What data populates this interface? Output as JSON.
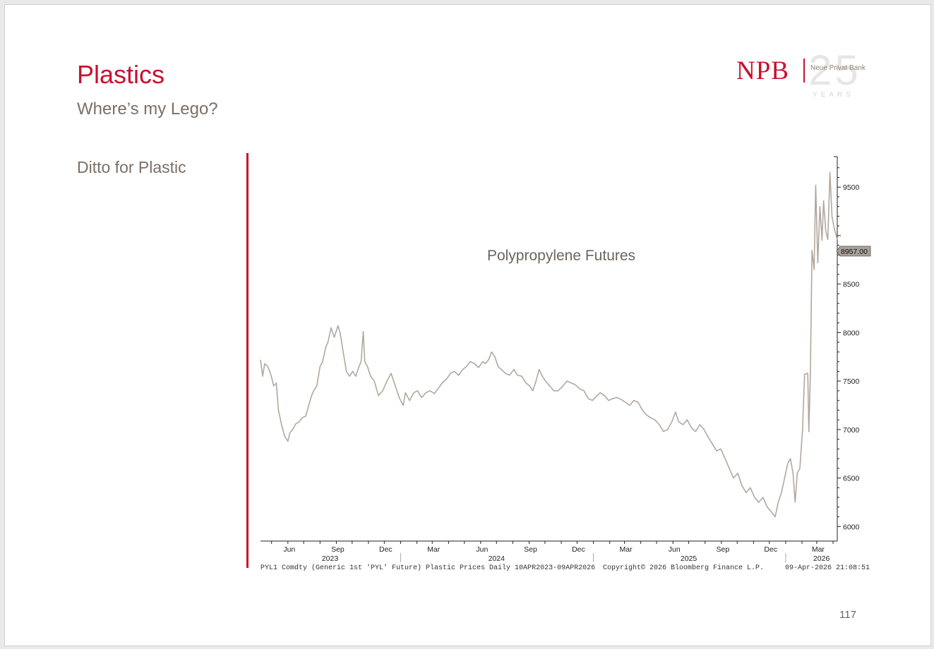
{
  "slide": {
    "title": "Plastics",
    "subtitle": "Where’s my Lego?",
    "side_text": "Ditto for Plastic",
    "page_number": "117"
  },
  "logo": {
    "brand": "NPB",
    "anniversary": "25",
    "bank_name": "Neue Privat Bank",
    "years": "YEARS"
  },
  "colors": {
    "accent": "#c8102e",
    "line": "#b1a89f",
    "text_gray": "#7a6f66"
  },
  "chart_data": {
    "type": "line",
    "title": "Polypropylene Futures",
    "last_value_label": "8957.00",
    "ylim": [
      5850,
      9800
    ],
    "yticks": [
      6000,
      6500,
      7000,
      7500,
      8000,
      8500,
      9500
    ],
    "x_start": "2023-04-10",
    "x_end": "2026-04-09",
    "month_ticks": [
      {
        "date": "2023-06-01",
        "label": "Jun"
      },
      {
        "date": "2023-09-01",
        "label": "Sep"
      },
      {
        "date": "2023-12-01",
        "label": "Dec"
      },
      {
        "date": "2024-03-01",
        "label": "Mar"
      },
      {
        "date": "2024-06-01",
        "label": "Jun"
      },
      {
        "date": "2024-09-01",
        "label": "Sep"
      },
      {
        "date": "2024-12-01",
        "label": "Dec"
      },
      {
        "date": "2025-03-01",
        "label": "Mar"
      },
      {
        "date": "2025-06-01",
        "label": "Jun"
      },
      {
        "date": "2025-09-01",
        "label": "Sep"
      },
      {
        "date": "2025-12-01",
        "label": "Dec"
      },
      {
        "date": "2026-03-01",
        "label": "Mar"
      }
    ],
    "year_labels": [
      {
        "date": "2023-08-20",
        "label": "2023"
      },
      {
        "date": "2024-07-01",
        "label": "2024"
      },
      {
        "date": "2025-07-01",
        "label": "2025"
      },
      {
        "date": "2026-03-10",
        "label": "2026"
      }
    ],
    "year_boundaries": [
      "2024-01-01",
      "2025-01-01",
      "2026-01-01"
    ],
    "series": [
      {
        "values": [
          [
            "2023-04-10",
            7720
          ],
          [
            "2023-04-14",
            7550
          ],
          [
            "2023-04-18",
            7680
          ],
          [
            "2023-04-24",
            7650
          ],
          [
            "2023-04-30",
            7560
          ],
          [
            "2023-05-05",
            7450
          ],
          [
            "2023-05-10",
            7480
          ],
          [
            "2023-05-14",
            7200
          ],
          [
            "2023-05-20",
            7050
          ],
          [
            "2023-05-26",
            6930
          ],
          [
            "2023-06-01",
            6880
          ],
          [
            "2023-06-05",
            6970
          ],
          [
            "2023-06-10",
            7000
          ],
          [
            "2023-06-16",
            7060
          ],
          [
            "2023-06-22",
            7080
          ],
          [
            "2023-06-28",
            7120
          ],
          [
            "2023-07-05",
            7140
          ],
          [
            "2023-07-10",
            7240
          ],
          [
            "2023-07-16",
            7350
          ],
          [
            "2023-07-20",
            7400
          ],
          [
            "2023-07-26",
            7450
          ],
          [
            "2023-08-01",
            7650
          ],
          [
            "2023-08-06",
            7700
          ],
          [
            "2023-08-12",
            7850
          ],
          [
            "2023-08-16",
            7900
          ],
          [
            "2023-08-22",
            8050
          ],
          [
            "2023-08-28",
            7950
          ],
          [
            "2023-09-04",
            8070
          ],
          [
            "2023-09-08",
            8000
          ],
          [
            "2023-09-14",
            7800
          ],
          [
            "2023-09-20",
            7600
          ],
          [
            "2023-09-26",
            7550
          ],
          [
            "2023-10-02",
            7600
          ],
          [
            "2023-10-08",
            7550
          ],
          [
            "2023-10-14",
            7650
          ],
          [
            "2023-10-18",
            7700
          ],
          [
            "2023-10-22",
            8010
          ],
          [
            "2023-10-25",
            7700
          ],
          [
            "2023-10-30",
            7650
          ],
          [
            "2023-11-05",
            7550
          ],
          [
            "2023-11-12",
            7500
          ],
          [
            "2023-11-20",
            7350
          ],
          [
            "2023-11-28",
            7400
          ],
          [
            "2023-12-06",
            7500
          ],
          [
            "2023-12-14",
            7580
          ],
          [
            "2023-12-22",
            7450
          ],
          [
            "2023-12-30",
            7320
          ],
          [
            "2024-01-06",
            7250
          ],
          [
            "2024-01-10",
            7380
          ],
          [
            "2024-01-18",
            7300
          ],
          [
            "2024-01-26",
            7380
          ],
          [
            "2024-02-02",
            7400
          ],
          [
            "2024-02-10",
            7330
          ],
          [
            "2024-02-18",
            7380
          ],
          [
            "2024-02-26",
            7400
          ],
          [
            "2024-03-05",
            7370
          ],
          [
            "2024-03-12",
            7420
          ],
          [
            "2024-03-20",
            7480
          ],
          [
            "2024-03-28",
            7520
          ],
          [
            "2024-04-05",
            7580
          ],
          [
            "2024-04-12",
            7600
          ],
          [
            "2024-04-20",
            7560
          ],
          [
            "2024-04-28",
            7620
          ],
          [
            "2024-05-05",
            7650
          ],
          [
            "2024-05-12",
            7700
          ],
          [
            "2024-05-20",
            7680
          ],
          [
            "2024-05-28",
            7640
          ],
          [
            "2024-06-05",
            7700
          ],
          [
            "2024-06-10",
            7680
          ],
          [
            "2024-06-16",
            7720
          ],
          [
            "2024-06-22",
            7800
          ],
          [
            "2024-06-28",
            7750
          ],
          [
            "2024-07-04",
            7650
          ],
          [
            "2024-07-10",
            7620
          ],
          [
            "2024-07-18",
            7580
          ],
          [
            "2024-07-26",
            7560
          ],
          [
            "2024-08-03",
            7620
          ],
          [
            "2024-08-10",
            7560
          ],
          [
            "2024-08-18",
            7550
          ],
          [
            "2024-08-26",
            7480
          ],
          [
            "2024-09-02",
            7450
          ],
          [
            "2024-09-08",
            7400
          ],
          [
            "2024-09-14",
            7500
          ],
          [
            "2024-09-20",
            7620
          ],
          [
            "2024-09-26",
            7550
          ],
          [
            "2024-10-02",
            7500
          ],
          [
            "2024-10-10",
            7450
          ],
          [
            "2024-10-18",
            7400
          ],
          [
            "2024-10-26",
            7400
          ],
          [
            "2024-11-04",
            7450
          ],
          [
            "2024-11-12",
            7500
          ],
          [
            "2024-11-20",
            7480
          ],
          [
            "2024-11-28",
            7460
          ],
          [
            "2024-12-06",
            7420
          ],
          [
            "2024-12-14",
            7400
          ],
          [
            "2024-12-22",
            7320
          ],
          [
            "2024-12-30",
            7300
          ],
          [
            "2025-01-06",
            7340
          ],
          [
            "2025-01-14",
            7380
          ],
          [
            "2025-01-22",
            7350
          ],
          [
            "2025-01-30",
            7300
          ],
          [
            "2025-02-07",
            7320
          ],
          [
            "2025-02-15",
            7330
          ],
          [
            "2025-02-23",
            7310
          ],
          [
            "2025-03-03",
            7280
          ],
          [
            "2025-03-11",
            7250
          ],
          [
            "2025-03-19",
            7300
          ],
          [
            "2025-03-27",
            7280
          ],
          [
            "2025-04-04",
            7200
          ],
          [
            "2025-04-12",
            7150
          ],
          [
            "2025-04-20",
            7120
          ],
          [
            "2025-04-28",
            7100
          ],
          [
            "2025-05-06",
            7050
          ],
          [
            "2025-05-14",
            6980
          ],
          [
            "2025-05-22",
            7000
          ],
          [
            "2025-05-30",
            7080
          ],
          [
            "2025-06-06",
            7180
          ],
          [
            "2025-06-12",
            7080
          ],
          [
            "2025-06-20",
            7050
          ],
          [
            "2025-06-28",
            7100
          ],
          [
            "2025-07-06",
            7020
          ],
          [
            "2025-07-14",
            6980
          ],
          [
            "2025-07-22",
            7050
          ],
          [
            "2025-07-30",
            7000
          ],
          [
            "2025-08-07",
            6920
          ],
          [
            "2025-08-15",
            6850
          ],
          [
            "2025-08-23",
            6780
          ],
          [
            "2025-08-31",
            6800
          ],
          [
            "2025-09-08",
            6700
          ],
          [
            "2025-09-16",
            6600
          ],
          [
            "2025-09-24",
            6500
          ],
          [
            "2025-10-02",
            6550
          ],
          [
            "2025-10-10",
            6420
          ],
          [
            "2025-10-18",
            6350
          ],
          [
            "2025-10-26",
            6400
          ],
          [
            "2025-11-03",
            6300
          ],
          [
            "2025-11-11",
            6250
          ],
          [
            "2025-11-19",
            6300
          ],
          [
            "2025-11-27",
            6200
          ],
          [
            "2025-12-05",
            6150
          ],
          [
            "2025-12-12",
            6100
          ],
          [
            "2025-12-18",
            6250
          ],
          [
            "2025-12-24",
            6350
          ],
          [
            "2025-12-30",
            6500
          ],
          [
            "2026-01-05",
            6650
          ],
          [
            "2026-01-10",
            6700
          ],
          [
            "2026-01-15",
            6550
          ],
          [
            "2026-01-19",
            6250
          ],
          [
            "2026-01-23",
            6550
          ],
          [
            "2026-01-28",
            6600
          ],
          [
            "2026-02-02",
            7000
          ],
          [
            "2026-02-06",
            7570
          ],
          [
            "2026-02-12",
            7580
          ],
          [
            "2026-02-14",
            6980
          ],
          [
            "2026-02-17",
            7580
          ],
          [
            "2026-02-20",
            8850
          ],
          [
            "2026-02-24",
            8650
          ],
          [
            "2026-02-27",
            9520
          ],
          [
            "2026-03-03",
            8720
          ],
          [
            "2026-03-07",
            9300
          ],
          [
            "2026-03-11",
            8950
          ],
          [
            "2026-03-14",
            9360
          ],
          [
            "2026-03-18",
            9050
          ],
          [
            "2026-03-22",
            8960
          ],
          [
            "2026-03-26",
            9650
          ],
          [
            "2026-03-30",
            9200
          ],
          [
            "2026-04-03",
            9080
          ],
          [
            "2026-04-09",
            8957
          ]
        ]
      }
    ],
    "footer_source": "PYL1 Comdty (Generic 1st 'PYL' Future) Plastic Prices Daily 10APR2023-09APR2026",
    "footer_copyright": "Copyright© 2026 Bloomberg Finance L.P.",
    "footer_timestamp": "09-Apr-2026 21:08:51"
  }
}
